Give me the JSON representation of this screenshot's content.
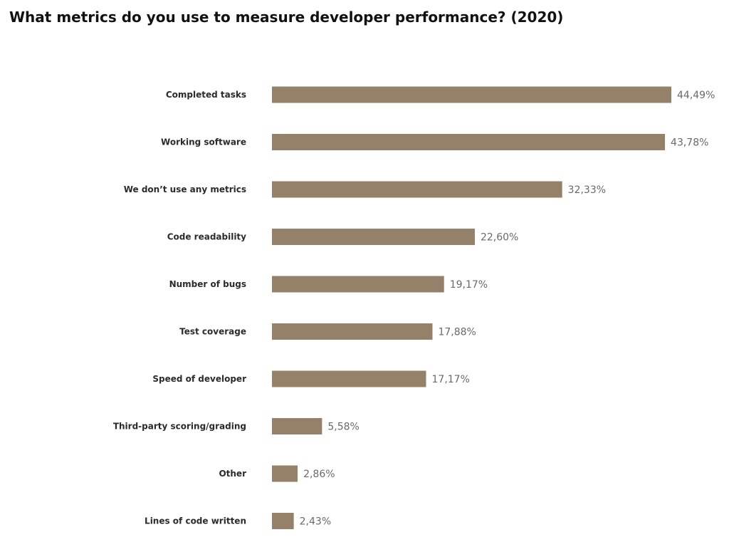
{
  "chart_data": {
    "type": "bar",
    "orientation": "horizontal",
    "title": "What metrics do you use to measure developer performance? (2020)",
    "categories": [
      "Completed tasks",
      "Working software",
      "We don’t use any metrics",
      "Code readability",
      "Number of bugs",
      "Test coverage",
      "Speed of developer",
      "Third-party scoring/grading",
      "Other",
      "Lines of code written"
    ],
    "values": [
      44.49,
      43.78,
      32.33,
      22.6,
      19.17,
      17.88,
      17.17,
      5.58,
      2.86,
      2.43
    ],
    "value_labels": [
      "44,49%",
      "43,78%",
      "32,33%",
      "22,60%",
      "19,17%",
      "17,88%",
      "17,17%",
      "5,58%",
      "2,86%",
      "2,43%"
    ],
    "xlim": [
      0,
      44.49
    ],
    "grid": false,
    "bar_color": "#958069"
  }
}
